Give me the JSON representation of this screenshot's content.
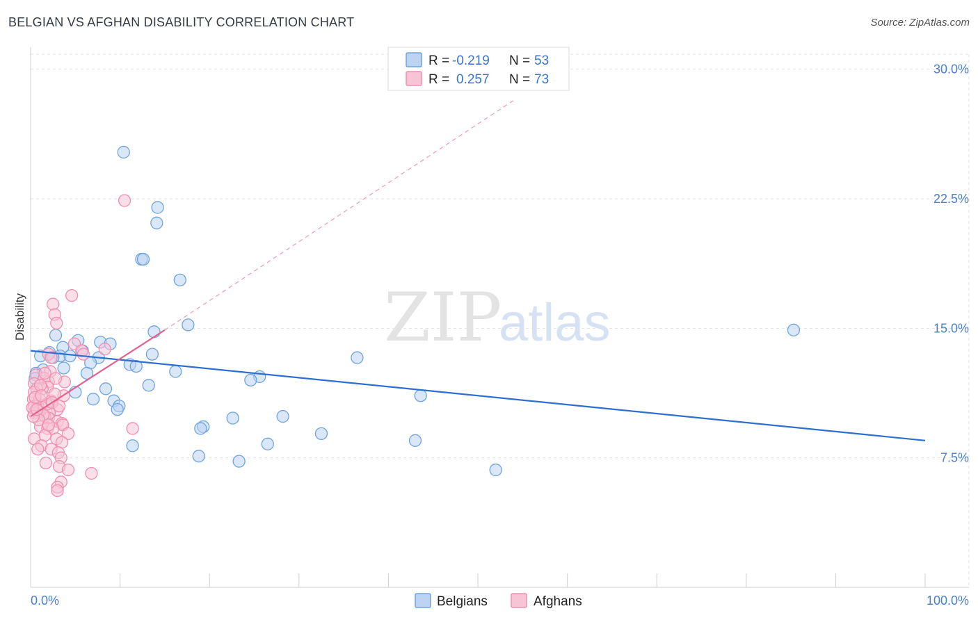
{
  "header": {
    "title": "BELGIAN VS AFGHAN DISABILITY CORRELATION CHART",
    "source": "Source: ZipAtlas.com"
  },
  "watermark": {
    "zip": "ZIP",
    "atlas": "atlas"
  },
  "chart_data": {
    "type": "scatter",
    "title": "BELGIAN VS AFGHAN DISABILITY CORRELATION CHART",
    "xlabel": "",
    "ylabel": "Disability",
    "xlim": [
      0,
      100
    ],
    "ylim": [
      0,
      32
    ],
    "x_tick_labels": {
      "min": "0.0%",
      "max": "100.0%"
    },
    "y_ticks": [
      {
        "value": 7.5,
        "label": "7.5%"
      },
      {
        "value": 15.0,
        "label": "15.0%"
      },
      {
        "value": 22.5,
        "label": "22.5%"
      },
      {
        "value": 30.0,
        "label": "30.0%"
      }
    ],
    "grid": true,
    "legend_top": {
      "placement": "top-center",
      "rows": [
        {
          "r_label": "R =",
          "r_value": "-0.219",
          "n_label": "N =",
          "n_value": "53"
        },
        {
          "r_label": "R =",
          "r_value": "0.257",
          "n_label": "N =",
          "n_value": "73"
        }
      ]
    },
    "legend_bottom": [
      "Belgians",
      "Afghans"
    ],
    "series": [
      {
        "name": "Belgians",
        "color": "#6fa3e0",
        "fill": "#bcd4f2",
        "trend": {
          "x": [
            0,
            100
          ],
          "y": [
            13.7,
            8.5
          ],
          "dashed_extension": false,
          "color": "#2c6fd1"
        },
        "points": [
          [
            10.4,
            25.2
          ],
          [
            14.2,
            22.0
          ],
          [
            14.1,
            21.1
          ],
          [
            12.4,
            19.0
          ],
          [
            12.6,
            19.0
          ],
          [
            16.7,
            17.8
          ],
          [
            17.6,
            15.2
          ],
          [
            13.8,
            14.8
          ],
          [
            85.3,
            14.9
          ],
          [
            2.8,
            14.6
          ],
          [
            5.3,
            14.3
          ],
          [
            7.8,
            14.2
          ],
          [
            8.9,
            14.1
          ],
          [
            3.6,
            13.9
          ],
          [
            2.1,
            13.6
          ],
          [
            5.8,
            13.7
          ],
          [
            3.3,
            13.4
          ],
          [
            1.1,
            13.4
          ],
          [
            4.4,
            13.4
          ],
          [
            13.6,
            13.5
          ],
          [
            7.6,
            13.3
          ],
          [
            36.5,
            13.3
          ],
          [
            6.7,
            13.0
          ],
          [
            11.1,
            12.9
          ],
          [
            11.8,
            12.8
          ],
          [
            1.4,
            12.6
          ],
          [
            3.7,
            12.7
          ],
          [
            16.2,
            12.5
          ],
          [
            0.6,
            12.4
          ],
          [
            6.3,
            12.4
          ],
          [
            25.6,
            12.2
          ],
          [
            24.6,
            12.0
          ],
          [
            13.2,
            11.7
          ],
          [
            8.4,
            11.5
          ],
          [
            5.0,
            11.3
          ],
          [
            43.6,
            11.1
          ],
          [
            7.0,
            10.9
          ],
          [
            9.3,
            10.8
          ],
          [
            9.9,
            10.5
          ],
          [
            9.7,
            10.3
          ],
          [
            28.2,
            9.9
          ],
          [
            22.6,
            9.8
          ],
          [
            19.3,
            9.3
          ],
          [
            19.0,
            9.2
          ],
          [
            32.5,
            8.9
          ],
          [
            43.0,
            8.5
          ],
          [
            26.5,
            8.3
          ],
          [
            11.4,
            8.2
          ],
          [
            18.8,
            7.6
          ],
          [
            23.3,
            7.3
          ],
          [
            52.0,
            6.8
          ],
          [
            0.5,
            12.1
          ],
          [
            2.5,
            13.3
          ]
        ]
      },
      {
        "name": "Afghans",
        "color": "#ee8fb0",
        "fill": "#f7c4d6",
        "trend": {
          "x": [
            0,
            15
          ],
          "y": [
            9.9,
            14.9
          ],
          "dashed_extension": true,
          "dashed_to": [
            54,
            28.2
          ],
          "color": "#e0628e"
        },
        "points": [
          [
            10.5,
            22.4
          ],
          [
            4.6,
            16.9
          ],
          [
            2.5,
            16.4
          ],
          [
            2.7,
            15.8
          ],
          [
            2.9,
            15.3
          ],
          [
            4.9,
            14.1
          ],
          [
            8.3,
            13.8
          ],
          [
            5.7,
            13.7
          ],
          [
            5.9,
            13.5
          ],
          [
            2.0,
            13.5
          ],
          [
            2.3,
            13.3
          ],
          [
            0.6,
            12.3
          ],
          [
            2.2,
            12.5
          ],
          [
            1.5,
            12.1
          ],
          [
            2.0,
            11.9
          ],
          [
            3.8,
            11.9
          ],
          [
            0.4,
            11.8
          ],
          [
            1.9,
            11.6
          ],
          [
            1.3,
            11.5
          ],
          [
            0.7,
            11.5
          ],
          [
            0.4,
            11.3
          ],
          [
            3.7,
            11.1
          ],
          [
            0.3,
            10.9
          ],
          [
            2.3,
            10.8
          ],
          [
            0.8,
            10.6
          ],
          [
            0.4,
            10.5
          ],
          [
            1.3,
            10.4
          ],
          [
            3.0,
            10.3
          ],
          [
            0.9,
            10.2
          ],
          [
            2.1,
            10.1
          ],
          [
            1.6,
            9.9
          ],
          [
            0.4,
            10.1
          ],
          [
            2.0,
            9.8
          ],
          [
            3.0,
            9.6
          ],
          [
            3.5,
            9.5
          ],
          [
            3.6,
            9.4
          ],
          [
            1.1,
            9.3
          ],
          [
            1.9,
            9.2
          ],
          [
            2.5,
            9.2
          ],
          [
            11.4,
            9.2
          ],
          [
            4.2,
            8.9
          ],
          [
            1.6,
            8.8
          ],
          [
            2.9,
            8.6
          ],
          [
            0.4,
            8.6
          ],
          [
            3.5,
            8.4
          ],
          [
            1.2,
            8.2
          ],
          [
            0.8,
            8.0
          ],
          [
            2.3,
            8.0
          ],
          [
            3.1,
            7.8
          ],
          [
            3.4,
            7.5
          ],
          [
            1.7,
            7.2
          ],
          [
            3.2,
            7.0
          ],
          [
            4.2,
            6.8
          ],
          [
            6.8,
            6.6
          ],
          [
            3.4,
            6.1
          ],
          [
            3.0,
            5.8
          ],
          [
            3.0,
            5.6
          ],
          [
            0.2,
            10.4
          ],
          [
            1.0,
            10.9
          ],
          [
            0.5,
            11.0
          ],
          [
            1.8,
            10.6
          ],
          [
            2.7,
            11.2
          ],
          [
            1.4,
            10.0
          ],
          [
            0.9,
            9.7
          ],
          [
            2.4,
            10.7
          ],
          [
            1.1,
            11.7
          ],
          [
            0.3,
            9.9
          ],
          [
            2.8,
            12.1
          ],
          [
            1.6,
            12.4
          ],
          [
            0.7,
            10.3
          ],
          [
            3.2,
            10.5
          ],
          [
            2.0,
            9.4
          ],
          [
            1.2,
            11.1
          ]
        ]
      }
    ]
  }
}
